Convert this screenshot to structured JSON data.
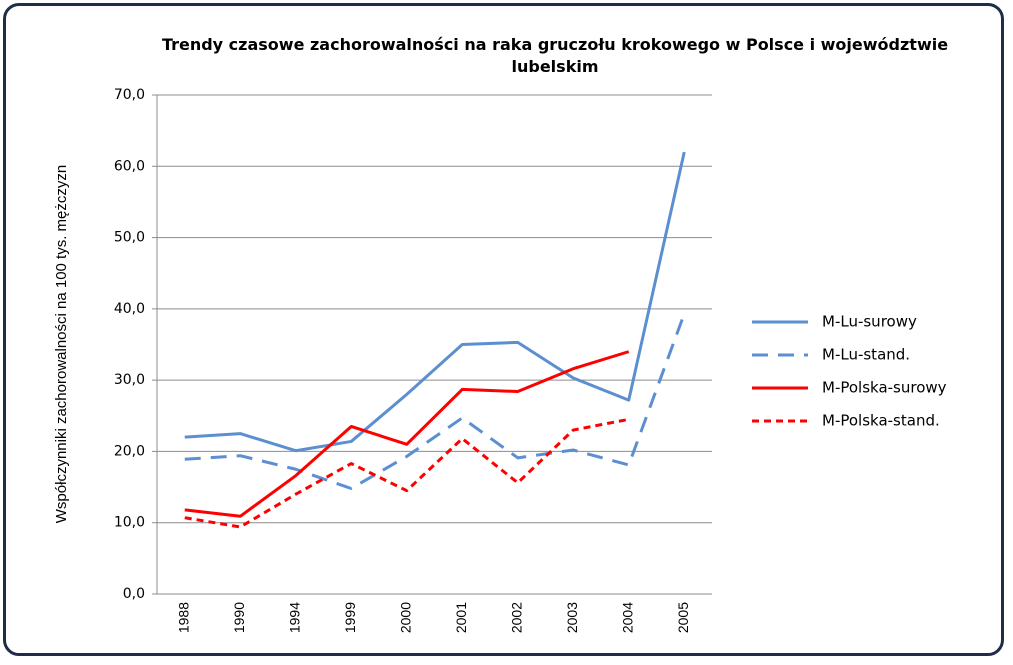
{
  "chart_data": {
    "type": "line",
    "title": "Trendy czasowe zachorowalności na raka gruczołu krokowego w Polsce i województwie lubelskim",
    "y_label": "Współczynniki zachorowalności na 100 tys. mężczyzn",
    "categories": [
      "1988",
      "1990",
      "1994",
      "1999",
      "2000",
      "2001",
      "2002",
      "2003",
      "2004",
      "2005"
    ],
    "series": [
      {
        "name": "M-Lu-surowy",
        "color": "#5b8fd0",
        "line_style": "solid",
        "values": [
          22.0,
          22.5,
          20.1,
          21.4,
          28.0,
          35.0,
          35.3,
          30.3,
          27.2,
          62.0
        ]
      },
      {
        "name": "M-Lu-stand.",
        "color": "#5b8fd0",
        "line_style": "long-dash",
        "values": [
          18.9,
          19.4,
          17.5,
          14.8,
          19.3,
          24.7,
          19.1,
          20.2,
          18.1,
          39.3
        ]
      },
      {
        "name": "M-Polska-surowy",
        "color": "#ff0000",
        "line_style": "solid",
        "values": [
          11.8,
          10.9,
          16.6,
          23.5,
          21.0,
          28.7,
          28.4,
          31.6,
          34.0,
          null
        ]
      },
      {
        "name": "M-Polska-stand.",
        "color": "#ff0000",
        "line_style": "short-dash",
        "values": [
          10.7,
          9.4,
          14.0,
          18.3,
          14.5,
          21.8,
          15.6,
          23.0,
          24.5,
          null
        ]
      }
    ],
    "ylim": [
      0,
      70
    ],
    "yticks": [
      {
        "value": 0,
        "label": "0,0"
      },
      {
        "value": 10,
        "label": "10,0"
      },
      {
        "value": 20,
        "label": "20,0"
      },
      {
        "value": 30,
        "label": "30,0"
      },
      {
        "value": 40,
        "label": "40,0"
      },
      {
        "value": 50,
        "label": "50,0"
      },
      {
        "value": 60,
        "label": "60,0"
      },
      {
        "value": 70,
        "label": "70,0"
      }
    ],
    "grid": true,
    "legend": "right"
  }
}
